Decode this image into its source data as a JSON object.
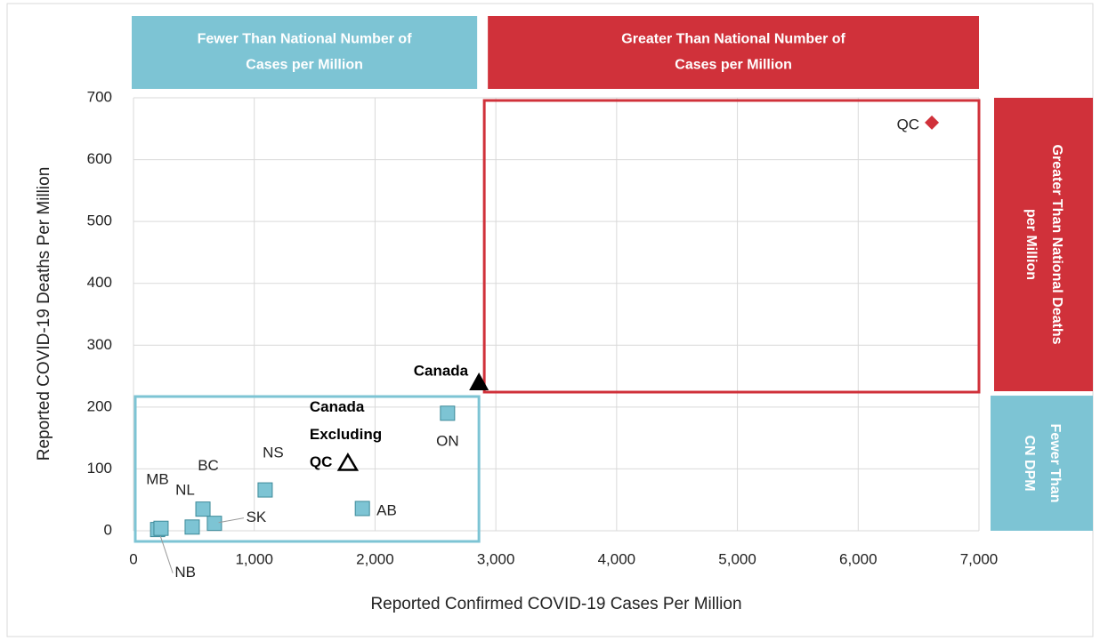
{
  "chart_data": {
    "type": "scatter",
    "x_label": "Reported Confirmed COVID-19 Cases Per Million",
    "y_label": "Reported COVID-19 Deaths Per Million",
    "xlim": [
      0,
      7000
    ],
    "ylim": [
      0,
      700
    ],
    "xticks": [
      0,
      {
        "value": 1000,
        "label": "1,000"
      },
      {
        "value": 2000,
        "label": "2,000"
      },
      {
        "value": 3000,
        "label": "3,000"
      },
      {
        "value": 4000,
        "label": "4,000"
      },
      {
        "value": 5000,
        "label": "5,000"
      },
      {
        "value": 6000,
        "label": "6,000"
      },
      {
        "value": 7000,
        "label": "7,000"
      }
    ],
    "yticks": [
      0,
      100,
      200,
      300,
      400,
      500,
      600,
      700
    ],
    "grid": true,
    "quadrant_labels": {
      "fewer_cases": [
        "Fewer Than National Number of",
        "Cases per Million"
      ],
      "greater_cases": [
        "Greater Than National Number of",
        "Cases per Million"
      ],
      "greater_deaths": [
        "Greater Than National Deaths",
        "per Million"
      ],
      "fewer_deaths": [
        "Fewer Than",
        "CN  DPM"
      ]
    },
    "series": [
      {
        "marker": "square",
        "color": "#7dc4d4",
        "labels": [
          [
            "NB"
          ],
          [
            "MB"
          ],
          [
            "NL"
          ],
          [
            "BC"
          ],
          [
            "SK"
          ],
          [
            "NS"
          ],
          [
            "AB"
          ],
          [
            "ON"
          ]
        ],
        "x": [
          200,
          228,
          486,
          575,
          670,
          1090,
          1895,
          2600
        ],
        "values": [
          2,
          4,
          6,
          35,
          12,
          66,
          36,
          190
        ]
      },
      {
        "marker": "diamond",
        "color": "#d0313a",
        "labels": [
          [
            "QC"
          ]
        ],
        "x": [
          6610
        ],
        "values": [
          660
        ]
      },
      {
        "marker": "triangle",
        "color": "#000000",
        "national": true,
        "labels": [
          [
            "Canada"
          ]
        ],
        "x": [
          2860
        ],
        "values": [
          240
        ]
      },
      {
        "marker": "open-triangle",
        "color": "#000000",
        "labels": [
          [
            "Canada",
            "Excluding",
            "QC"
          ]
        ],
        "x": [
          1775
        ],
        "values": [
          110
        ]
      }
    ]
  }
}
